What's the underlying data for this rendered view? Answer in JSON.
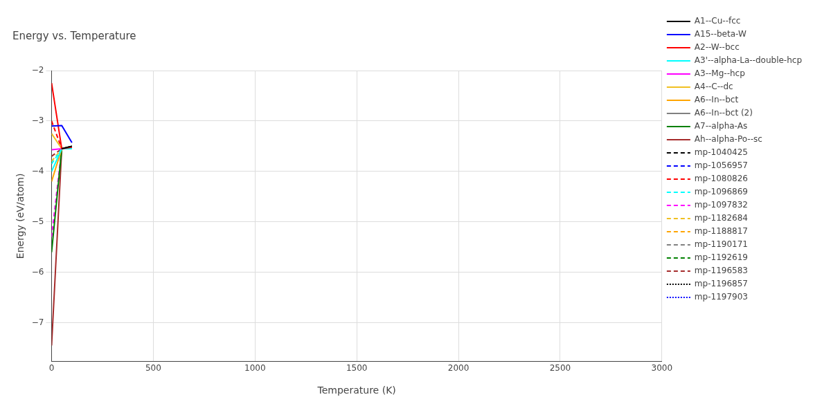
{
  "chart_data": {
    "type": "line",
    "title": "Energy vs. Temperature",
    "xlabel": "Temperature (K)",
    "ylabel": "Energy (eV/atom)",
    "x": [
      0,
      50,
      100
    ],
    "xlim": [
      0,
      3000
    ],
    "xticks": [
      0,
      500,
      1000,
      1500,
      2000,
      2500,
      3000
    ],
    "ylim": [
      -7.77,
      -2
    ],
    "yticks": [
      -7,
      -6,
      -5,
      -4,
      -3,
      -2
    ],
    "grid": true,
    "legend": "right",
    "marker": "none",
    "series": [
      {
        "name": "A1--Cu--fcc",
        "color": "#000000",
        "line_style": "solid",
        "values": [
          null,
          -3.55,
          -3.5
        ]
      },
      {
        "name": "A15--beta-W",
        "color": "#0000ff",
        "line_style": "solid",
        "values": [
          -3.1,
          -3.09,
          -3.43
        ]
      },
      {
        "name": "A2--W--bcc",
        "color": "#ff0000",
        "line_style": "solid",
        "values": [
          -2.25,
          -3.55,
          -3.52
        ]
      },
      {
        "name": "A3'--alpha-La--double-hcp",
        "color": "#00ffff",
        "line_style": "solid",
        "values": [
          -4.0,
          -3.55,
          -3.55
        ]
      },
      {
        "name": "A3--Mg--hcp",
        "color": "#ff00ff",
        "line_style": "solid",
        "values": [
          -3.57,
          -3.55,
          -3.52
        ]
      },
      {
        "name": "A4--C--dc",
        "color": "#f0c020",
        "line_style": "solid",
        "values": [
          -3.25,
          -3.55,
          -3.53
        ]
      },
      {
        "name": "A6--In--bct",
        "color": "#ffa500",
        "line_style": "solid",
        "values": [
          -4.2,
          -3.55,
          -3.53
        ]
      },
      {
        "name": "A6--In--bct (2)",
        "color": "#808080",
        "line_style": "solid",
        "values": [
          null,
          null,
          null
        ]
      },
      {
        "name": "A7--alpha-As",
        "color": "#008000",
        "line_style": "solid",
        "values": [
          -5.6,
          -3.55,
          -3.5
        ]
      },
      {
        "name": "Ah--alpha-Po--sc",
        "color": "#a52a2a",
        "line_style": "solid",
        "values": [
          -7.45,
          -3.55,
          -3.5
        ]
      },
      {
        "name": "mp-1040425",
        "color": "#000000",
        "line_style": "dashed",
        "values": [
          null,
          null,
          null
        ]
      },
      {
        "name": "mp-1056957",
        "color": "#0000ff",
        "line_style": "dashed",
        "values": [
          null,
          null,
          null
        ]
      },
      {
        "name": "mp-1080826",
        "color": "#ff0000",
        "line_style": "dashed",
        "values": [
          -3.0,
          -3.55,
          null
        ]
      },
      {
        "name": "mp-1096869",
        "color": "#00ffff",
        "line_style": "dashed",
        "values": [
          -3.85,
          -3.55,
          null
        ]
      },
      {
        "name": "mp-1097832",
        "color": "#ff00ff",
        "line_style": "dashed",
        "values": [
          -5.3,
          -3.55,
          null
        ]
      },
      {
        "name": "mp-1182684",
        "color": "#f0c020",
        "line_style": "dashed",
        "values": [
          -3.8,
          -3.55,
          null
        ]
      },
      {
        "name": "mp-1188817",
        "color": "#ffa500",
        "line_style": "dashed",
        "values": [
          null,
          null,
          null
        ]
      },
      {
        "name": "mp-1190171",
        "color": "#808080",
        "line_style": "dashed",
        "values": [
          null,
          null,
          null
        ]
      },
      {
        "name": "mp-1192619",
        "color": "#008000",
        "line_style": "dashed",
        "values": [
          null,
          null,
          null
        ]
      },
      {
        "name": "mp-1196583",
        "color": "#a52a2a",
        "line_style": "dashed",
        "values": [
          -3.7,
          -3.55,
          null
        ]
      },
      {
        "name": "mp-1196857",
        "color": "#000000",
        "line_style": "dotted",
        "values": [
          null,
          null,
          null
        ]
      },
      {
        "name": "mp-1197903",
        "color": "#0000ff",
        "line_style": "dotted",
        "values": [
          null,
          null,
          null
        ]
      }
    ]
  }
}
